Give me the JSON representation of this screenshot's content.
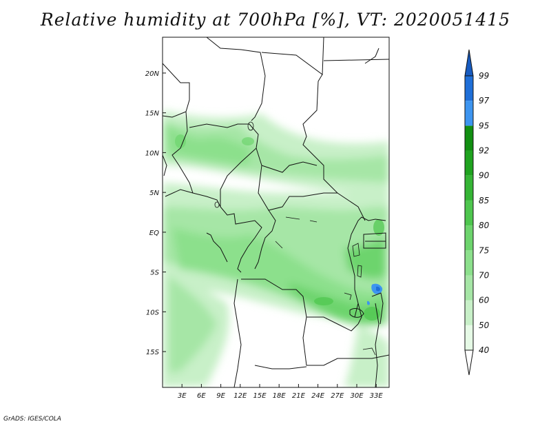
{
  "title": "Relative humidity at 700hPa [%], VT: 2020051415",
  "credit": "GrADS: IGES/COLA",
  "map": {
    "lon_range": [
      0,
      35
    ],
    "lat_range": [
      -19.5,
      24.5
    ],
    "lat_ticks": [
      {
        "value": 20,
        "label": "20N"
      },
      {
        "value": 15,
        "label": "15N"
      },
      {
        "value": 10,
        "label": "10N"
      },
      {
        "value": 5,
        "label": "5N"
      },
      {
        "value": 0,
        "label": "EQ"
      },
      {
        "value": -5,
        "label": "5S"
      },
      {
        "value": -10,
        "label": "10S"
      },
      {
        "value": -15,
        "label": "15S"
      }
    ],
    "lon_ticks": [
      {
        "value": 3,
        "label": "3E"
      },
      {
        "value": 6,
        "label": "6E"
      },
      {
        "value": 9,
        "label": "9E"
      },
      {
        "value": 12,
        "label": "12E"
      },
      {
        "value": 15,
        "label": "15E"
      },
      {
        "value": 18,
        "label": "18E"
      },
      {
        "value": 21,
        "label": "21E"
      },
      {
        "value": 24,
        "label": "24E"
      },
      {
        "value": 27,
        "label": "27E"
      },
      {
        "value": 30,
        "label": "30E"
      },
      {
        "value": 33,
        "label": "33E"
      }
    ]
  },
  "colorbar": {
    "levels": [
      "40",
      "50",
      "60",
      "70",
      "75",
      "80",
      "85",
      "90",
      "92",
      "95",
      "97",
      "99"
    ],
    "colors": [
      "#ffffff",
      "#e6fae6",
      "#c8f0c8",
      "#a6e6a6",
      "#8ce08c",
      "#6dd46d",
      "#4ec64e",
      "#35b535",
      "#1fa31f",
      "#118f11",
      "#3d95f0",
      "#1f6fd8",
      "#175bc0"
    ]
  }
}
